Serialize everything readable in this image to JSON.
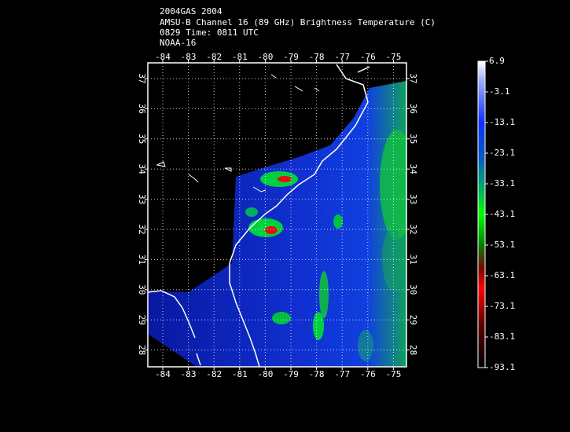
{
  "header": {
    "lines": [
      "2004GAS 2004",
      "AMSU-B Channel 16 (89 GHz) Brightness Temperature (C)",
      "0829 Time: 0811 UTC",
      "NOAA-16"
    ]
  },
  "map": {
    "lon_ticks": [
      -84,
      -83,
      -82,
      -81,
      -80,
      -79,
      -78,
      -77,
      -76,
      -75
    ],
    "lat_ticks": [
      28,
      29,
      30,
      31,
      32,
      33,
      34,
      35,
      36,
      37
    ]
  },
  "colorbar": {
    "labels": [
      6.9,
      -3.1,
      -13.1,
      -23.1,
      -33.1,
      -43.1,
      -53.1,
      -63.1,
      -73.1,
      -83.1,
      -93.1
    ]
  }
}
